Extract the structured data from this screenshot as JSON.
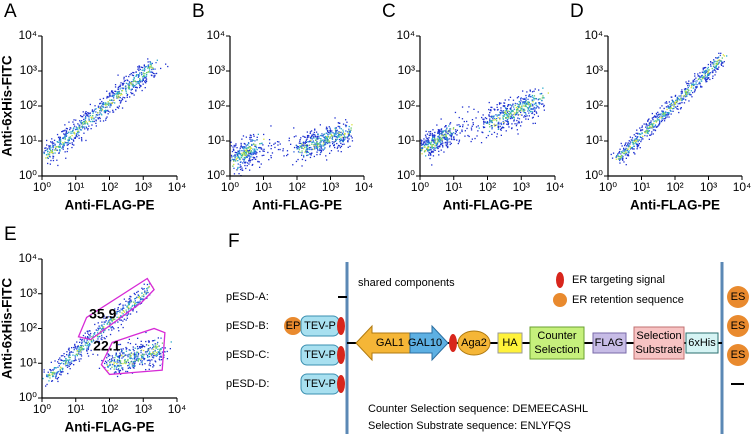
{
  "chart_data": [
    {
      "type": "scatter",
      "label": "A",
      "xlabel": "Anti-FLAG-PE",
      "ylabel": "Anti-6xHis-FITC",
      "log_x": true,
      "log_y": true,
      "xlim": [
        1,
        10000
      ],
      "ylim": [
        1,
        10000
      ],
      "xticks": [
        {
          "value": 1,
          "label": "10⁰"
        },
        {
          "value": 10,
          "label": "10¹"
        },
        {
          "value": 100,
          "label": "10²"
        },
        {
          "value": 1000,
          "label": "10³"
        },
        {
          "value": 10000,
          "label": "10⁴"
        }
      ],
      "yticks": [
        {
          "value": 1,
          "label": "10⁰"
        },
        {
          "value": 10,
          "label": "10¹"
        },
        {
          "value": 100,
          "label": "10²"
        },
        {
          "value": 1000,
          "label": "10³"
        },
        {
          "value": 10000,
          "label": "10⁴"
        }
      ]
    },
    {
      "type": "scatter",
      "label": "B",
      "xlabel": "Anti-FLAG-PE",
      "log_x": true,
      "log_y": true,
      "xlim": [
        1,
        10000
      ],
      "ylim": [
        1,
        10000
      ],
      "xticks": [
        {
          "value": 1,
          "label": "10⁰"
        },
        {
          "value": 10,
          "label": "10¹"
        },
        {
          "value": 100,
          "label": "10²"
        },
        {
          "value": 1000,
          "label": "10³"
        },
        {
          "value": 10000,
          "label": "10⁴"
        }
      ],
      "yticks": [
        {
          "value": 1,
          "label": "10⁰"
        },
        {
          "value": 10,
          "label": "10¹"
        },
        {
          "value": 100,
          "label": "10²"
        },
        {
          "value": 1000,
          "label": "10³"
        },
        {
          "value": 10000,
          "label": "10⁴"
        }
      ]
    },
    {
      "type": "scatter",
      "label": "C",
      "xlabel": "Anti-FLAG-PE",
      "log_x": true,
      "log_y": true,
      "xlim": [
        1,
        10000
      ],
      "ylim": [
        1,
        10000
      ],
      "xticks": [
        {
          "value": 1,
          "label": "10⁰"
        },
        {
          "value": 10,
          "label": "10¹"
        },
        {
          "value": 100,
          "label": "10²"
        },
        {
          "value": 1000,
          "label": "10³"
        },
        {
          "value": 10000,
          "label": "10⁴"
        }
      ],
      "yticks": [
        {
          "value": 1,
          "label": "10⁰"
        },
        {
          "value": 10,
          "label": "10¹"
        },
        {
          "value": 100,
          "label": "10²"
        },
        {
          "value": 1000,
          "label": "10³"
        },
        {
          "value": 10000,
          "label": "10⁴"
        }
      ]
    },
    {
      "type": "scatter",
      "label": "D",
      "xlabel": "Anti-FLAG-PE",
      "log_x": true,
      "log_y": true,
      "xlim": [
        1,
        10000
      ],
      "ylim": [
        1,
        10000
      ],
      "xticks": [
        {
          "value": 1,
          "label": "10⁰"
        },
        {
          "value": 10,
          "label": "10¹"
        },
        {
          "value": 100,
          "label": "10²"
        },
        {
          "value": 1000,
          "label": "10³"
        },
        {
          "value": 10000,
          "label": "10⁴"
        }
      ],
      "yticks": [
        {
          "value": 1,
          "label": "10⁰"
        },
        {
          "value": 10,
          "label": "10¹"
        },
        {
          "value": 100,
          "label": "10²"
        },
        {
          "value": 1000,
          "label": "10³"
        },
        {
          "value": 10000,
          "label": "10⁴"
        }
      ]
    },
    {
      "type": "scatter",
      "label": "E",
      "xlabel": "Anti-FLAG-PE",
      "ylabel": "Anti-6xHis-FITC",
      "log_x": true,
      "log_y": true,
      "xlim": [
        1,
        10000
      ],
      "ylim": [
        1,
        10000
      ],
      "xticks": [
        {
          "value": 1,
          "label": "10⁰"
        },
        {
          "value": 10,
          "label": "10¹"
        },
        {
          "value": 100,
          "label": "10²"
        },
        {
          "value": 1000,
          "label": "10³"
        },
        {
          "value": 10000,
          "label": "10⁴"
        }
      ],
      "yticks": [
        {
          "value": 1,
          "label": "10⁰"
        },
        {
          "value": 10,
          "label": "10¹"
        },
        {
          "value": 100,
          "label": "10²"
        },
        {
          "value": 1000,
          "label": "10³"
        },
        {
          "value": 10000,
          "label": "10⁴"
        }
      ],
      "gate_values": [
        35.9,
        22.1
      ]
    }
  ],
  "figure_f": {
    "label": "F",
    "shared": "shared components",
    "constructs": [
      "pESD-A:",
      "pESD-B:",
      "pESD-C:",
      "pESD-D:"
    ],
    "legend": [
      "ER targeting signal",
      "ER retention sequence"
    ],
    "elements": {
      "ep": "EP",
      "tev": "TEV-P",
      "gal1": "GAL1",
      "gal10": "GAL10",
      "aga2": "Aga2",
      "ha": "HA",
      "counter": [
        "Counter",
        "Selection"
      ],
      "flag": "FLAG",
      "substrate": [
        "Selection",
        "Substrate"
      ],
      "his": "6xHis",
      "es": "ES"
    },
    "notes": [
      "Counter Selection sequence: DEMEECASHL",
      "Selection Substrate sequence: ENLYFQS"
    ]
  }
}
